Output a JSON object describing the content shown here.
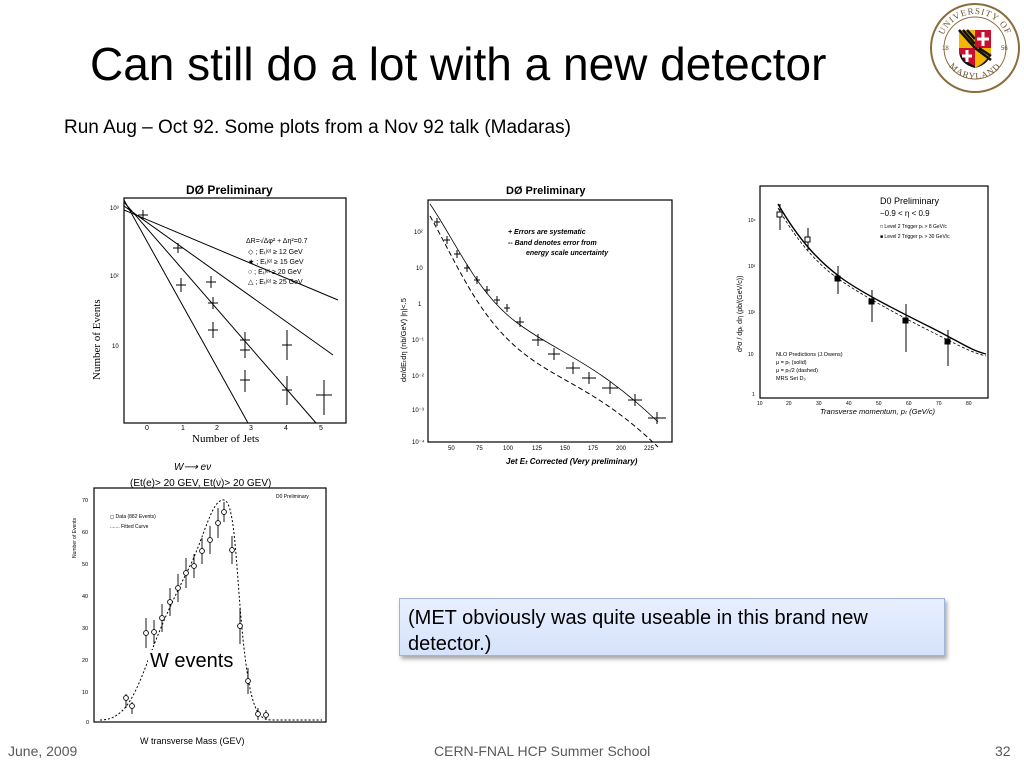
{
  "slide": {
    "title": "Can still do a lot with a new detector",
    "subtitle": "Run Aug – Oct 92.  Some plots from a Nov 92 talk  (Madaras)",
    "callout": "(MET obviously was quite useable in this brand new detector.)",
    "w_events_label": "W events",
    "footer": {
      "date": "June, 2009",
      "center": "CERN-FNAL HCP Summer School",
      "page": "32"
    }
  },
  "seal": {
    "top_text": "UNIVERSITY OF",
    "bottom_text": "MARYLAND",
    "year_left": "18",
    "year_right": "56"
  },
  "plots": {
    "njets": {
      "header": "DØ Preliminary",
      "ylabel": "Number of Events",
      "xlabel": "Number of Jets",
      "xticks": [
        "0",
        "1",
        "2",
        "3",
        "4",
        "5"
      ],
      "yticks": [
        "10³",
        "10²",
        "10"
      ],
      "legend": [
        "ΔR=√Δφ² + Δη²=0.7",
        "◇ ; Eₜʲᵉᵗ ≥ 12 GeV",
        "★ ; Eₜʲᵉᵗ ≥ 15 GeV",
        "○ ; Eₜʲᵉᵗ ≥ 20 GeV",
        "△ ; Eₜʲᵉᵗ ≥ 25 GeV"
      ]
    },
    "jet_et": {
      "header": "DØ Preliminary",
      "ylabel": "dσ/dEₜdη (nb/GeV)  |η|<.5",
      "xlabel": "Jet Eₜ Corrected (Very preliminary)",
      "xticks": [
        "50",
        "75",
        "100",
        "125",
        "150",
        "175",
        "200",
        "225"
      ],
      "yticks": [
        "10²",
        "10",
        "1",
        "10⁻¹",
        "10⁻²",
        "10⁻³",
        "10⁻⁴"
      ],
      "legend": [
        "+ Errors are systematic",
        "-- Band denotes error from",
        "energy scale uncertainty"
      ]
    },
    "inclusive": {
      "header": "D0 Preliminary",
      "range": "−0.9 < η < 0.9",
      "ylabel": "d²σ / dpₜ dη (pb/(GeV/c))",
      "xlabel": "Transverse momentum, pₜ (GeV/c)",
      "xticks": [
        "10",
        "20",
        "30",
        "40",
        "50",
        "60",
        "70",
        "80"
      ],
      "yticks": [
        "10⁴",
        "10³",
        "10²",
        "10",
        "1"
      ],
      "legend": [
        "□ Level 2 Trigger pₜ > 8 GeV/c",
        "■ Level 2 Trigger pₜ > 30 GeV/c"
      ],
      "notes": [
        "NLO Predictions (J.Owens)",
        "μ = pₜ (solid)",
        "μ = pₜ/2 (dashed)",
        "MRS Set D₀"
      ]
    },
    "wmass": {
      "header": "D0 Preliminary",
      "title": "W⟶ eν",
      "subtitle": "(Et(e)> 20 GEV, Et(ν)> 20 GEV)",
      "ylabel": "Number of Events",
      "xlabel": "W transverse Mass   (GEV)",
      "yticks": [
        "70",
        "60",
        "50",
        "40",
        "30",
        "20",
        "10",
        "0"
      ],
      "legend": [
        "◻ Data (882 Events)",
        "....... Fitted Curve"
      ]
    }
  }
}
